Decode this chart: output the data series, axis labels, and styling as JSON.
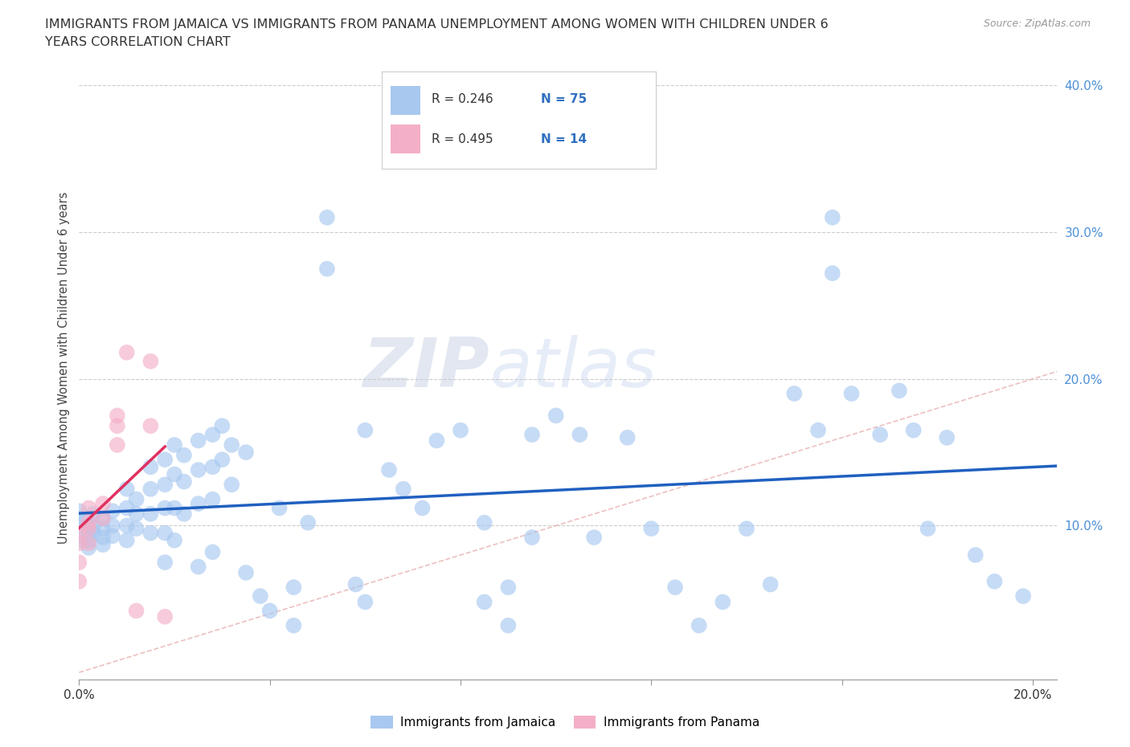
{
  "title_line1": "IMMIGRANTS FROM JAMAICA VS IMMIGRANTS FROM PANAMA UNEMPLOYMENT AMONG WOMEN WITH CHILDREN UNDER 6",
  "title_line2": "YEARS CORRELATION CHART",
  "source": "Source: ZipAtlas.com",
  "ylabel": "Unemployment Among Women with Children Under 6 years",
  "xlim": [
    0.0,
    0.205
  ],
  "ylim": [
    -0.005,
    0.42
  ],
  "jamaica_color": "#a8c8f0",
  "panama_color": "#f4afc8",
  "jamaica_line_color": "#2060c0",
  "panama_line_color": "#e03060",
  "diagonal_color": "#e8b0b0",
  "background_color": "#ffffff",
  "watermark_zip": "ZIP",
  "watermark_atlas": "atlas",
  "jamaica_points": [
    [
      0.0,
      0.1
    ],
    [
      0.0,
      0.09
    ],
    [
      0.0,
      0.105
    ],
    [
      0.0,
      0.11
    ],
    [
      0.002,
      0.1
    ],
    [
      0.002,
      0.095
    ],
    [
      0.002,
      0.09
    ],
    [
      0.002,
      0.085
    ],
    [
      0.003,
      0.1
    ],
    [
      0.003,
      0.108
    ],
    [
      0.003,
      0.095
    ],
    [
      0.005,
      0.105
    ],
    [
      0.005,
      0.098
    ],
    [
      0.005,
      0.092
    ],
    [
      0.005,
      0.087
    ],
    [
      0.007,
      0.11
    ],
    [
      0.007,
      0.1
    ],
    [
      0.007,
      0.093
    ],
    [
      0.01,
      0.125
    ],
    [
      0.01,
      0.112
    ],
    [
      0.01,
      0.1
    ],
    [
      0.01,
      0.09
    ],
    [
      0.012,
      0.118
    ],
    [
      0.012,
      0.108
    ],
    [
      0.012,
      0.098
    ],
    [
      0.015,
      0.14
    ],
    [
      0.015,
      0.125
    ],
    [
      0.015,
      0.108
    ],
    [
      0.015,
      0.095
    ],
    [
      0.018,
      0.145
    ],
    [
      0.018,
      0.128
    ],
    [
      0.018,
      0.112
    ],
    [
      0.018,
      0.095
    ],
    [
      0.018,
      0.075
    ],
    [
      0.02,
      0.155
    ],
    [
      0.02,
      0.135
    ],
    [
      0.02,
      0.112
    ],
    [
      0.02,
      0.09
    ],
    [
      0.022,
      0.148
    ],
    [
      0.022,
      0.13
    ],
    [
      0.022,
      0.108
    ],
    [
      0.025,
      0.158
    ],
    [
      0.025,
      0.138
    ],
    [
      0.025,
      0.115
    ],
    [
      0.025,
      0.072
    ],
    [
      0.028,
      0.162
    ],
    [
      0.028,
      0.14
    ],
    [
      0.028,
      0.118
    ],
    [
      0.028,
      0.082
    ],
    [
      0.03,
      0.168
    ],
    [
      0.03,
      0.145
    ],
    [
      0.032,
      0.155
    ],
    [
      0.032,
      0.128
    ],
    [
      0.035,
      0.15
    ],
    [
      0.035,
      0.068
    ],
    [
      0.038,
      0.052
    ],
    [
      0.04,
      0.042
    ],
    [
      0.042,
      0.112
    ],
    [
      0.045,
      0.058
    ],
    [
      0.045,
      0.032
    ],
    [
      0.048,
      0.102
    ],
    [
      0.052,
      0.275
    ],
    [
      0.052,
      0.31
    ],
    [
      0.058,
      0.06
    ],
    [
      0.06,
      0.165
    ],
    [
      0.06,
      0.048
    ],
    [
      0.065,
      0.138
    ],
    [
      0.068,
      0.125
    ],
    [
      0.072,
      0.112
    ],
    [
      0.075,
      0.158
    ],
    [
      0.08,
      0.165
    ],
    [
      0.085,
      0.102
    ],
    [
      0.085,
      0.048
    ],
    [
      0.09,
      0.058
    ],
    [
      0.09,
      0.032
    ],
    [
      0.095,
      0.162
    ],
    [
      0.095,
      0.092
    ],
    [
      0.1,
      0.175
    ],
    [
      0.105,
      0.162
    ],
    [
      0.108,
      0.092
    ],
    [
      0.115,
      0.16
    ],
    [
      0.12,
      0.098
    ],
    [
      0.125,
      0.058
    ],
    [
      0.13,
      0.032
    ],
    [
      0.135,
      0.048
    ],
    [
      0.14,
      0.098
    ],
    [
      0.145,
      0.06
    ],
    [
      0.15,
      0.19
    ],
    [
      0.155,
      0.165
    ],
    [
      0.158,
      0.31
    ],
    [
      0.158,
      0.272
    ],
    [
      0.162,
      0.19
    ],
    [
      0.168,
      0.162
    ],
    [
      0.172,
      0.192
    ],
    [
      0.175,
      0.165
    ],
    [
      0.178,
      0.098
    ],
    [
      0.182,
      0.16
    ],
    [
      0.188,
      0.08
    ],
    [
      0.192,
      0.062
    ],
    [
      0.198,
      0.052
    ]
  ],
  "panama_points": [
    [
      0.0,
      0.062
    ],
    [
      0.0,
      0.075
    ],
    [
      0.0,
      0.088
    ],
    [
      0.0,
      0.095
    ],
    [
      0.002,
      0.102
    ],
    [
      0.002,
      0.112
    ],
    [
      0.002,
      0.098
    ],
    [
      0.002,
      0.088
    ],
    [
      0.005,
      0.105
    ],
    [
      0.005,
      0.115
    ],
    [
      0.008,
      0.155
    ],
    [
      0.008,
      0.168
    ],
    [
      0.008,
      0.175
    ],
    [
      0.01,
      0.218
    ],
    [
      0.012,
      0.042
    ],
    [
      0.015,
      0.212
    ],
    [
      0.015,
      0.168
    ],
    [
      0.018,
      0.038
    ]
  ]
}
